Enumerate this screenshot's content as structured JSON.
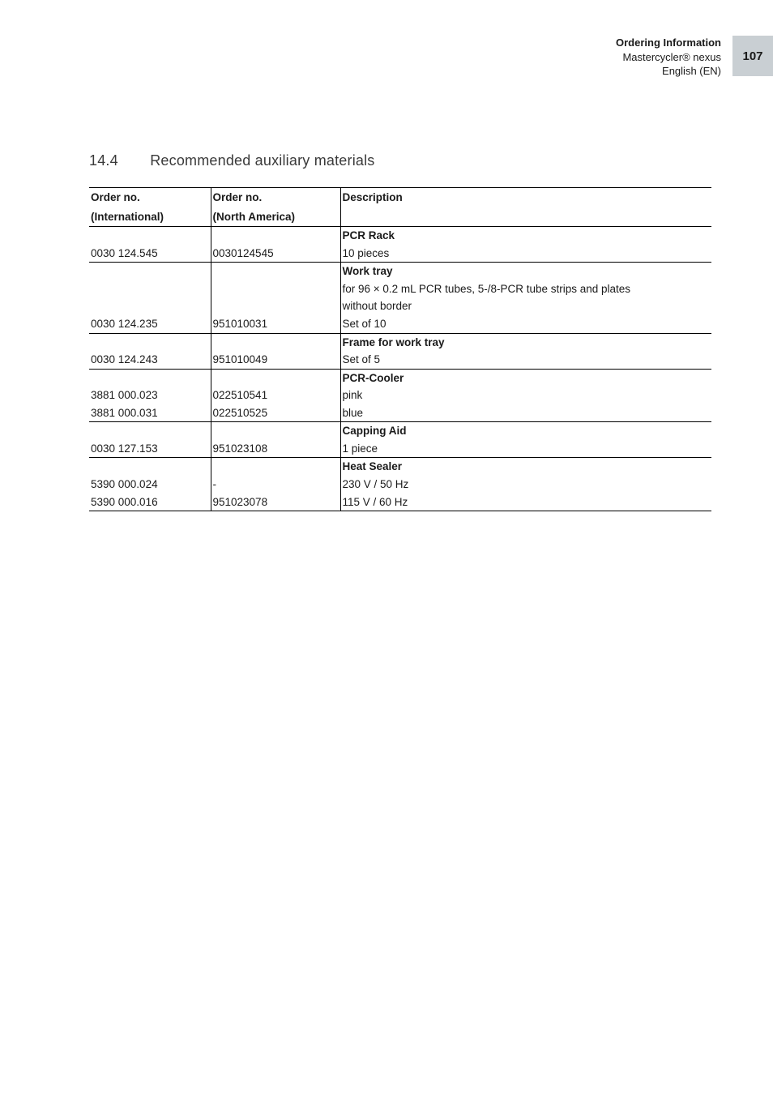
{
  "page": {
    "section_title": "Ordering Information",
    "product": "Mastercycler® nexus",
    "language": "English (EN)",
    "page_number": "107",
    "page_badge_bg": "#c9cfd3",
    "text_color": "#1a1a1a"
  },
  "heading": {
    "number": "14.4",
    "title": "Recommended auxiliary materials"
  },
  "table": {
    "columns": {
      "intl": "Order no.",
      "intl_sub": "(International)",
      "na": "Order no.",
      "na_sub": "(North America)",
      "desc": "Description"
    },
    "groups": [
      {
        "title": "PCR Rack",
        "extra_lines": [],
        "rows": [
          {
            "intl": "0030 124.545",
            "na": "0030124545",
            "desc": "10 pieces"
          }
        ]
      },
      {
        "title": "Work tray",
        "extra_lines": [
          "for 96 × 0.2 mL PCR tubes, 5-/8-PCR tube strips and plates",
          "without border"
        ],
        "rows": [
          {
            "intl": "0030 124.235",
            "na": "951010031",
            "desc": "Set of 10"
          }
        ]
      },
      {
        "title": "Frame for work tray",
        "extra_lines": [],
        "rows": [
          {
            "intl": "0030 124.243",
            "na": "951010049",
            "desc": "Set of 5"
          }
        ]
      },
      {
        "title": "PCR-Cooler",
        "extra_lines": [],
        "rows": [
          {
            "intl": "3881 000.023",
            "na": "022510541",
            "desc": "pink"
          },
          {
            "intl": "3881 000.031",
            "na": "022510525",
            "desc": "blue"
          }
        ]
      },
      {
        "title": "Capping Aid",
        "extra_lines": [],
        "rows": [
          {
            "intl": "0030 127.153",
            "na": "951023108",
            "desc": "1 piece"
          }
        ]
      },
      {
        "title": "Heat Sealer",
        "extra_lines": [],
        "rows": [
          {
            "intl": "5390 000.024",
            "na": "-",
            "desc": "230 V / 50 Hz"
          },
          {
            "intl": "5390 000.016",
            "na": "951023078",
            "desc": "115 V / 60 Hz"
          }
        ]
      }
    ]
  }
}
